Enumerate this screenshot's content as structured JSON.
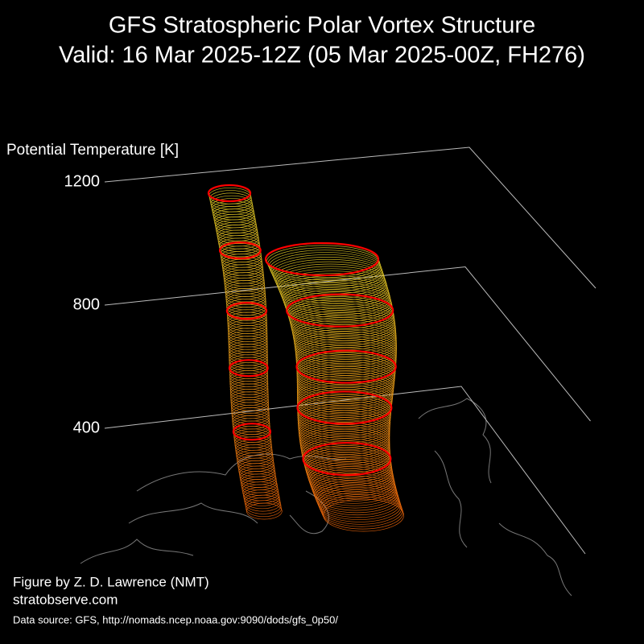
{
  "chart_data": {
    "type": "surface3d",
    "title": "GFS Stratospheric Polar Vortex Structure",
    "subtitle": "Valid: 16 Mar 2025-12Z  (05 Mar 2025-00Z, FH276)",
    "zlabel": "Potential Temperature [K]",
    "zlim": [
      400,
      1200
    ],
    "zticks": [
      400,
      800,
      1200
    ],
    "credit": "Figure by Z. D. Lawrence (NMT)",
    "website": "stratobserve.com",
    "source": "Data source: GFS, http://nomads.ncep.noaa.gov:9090/dods/gfs_0p50/"
  }
}
